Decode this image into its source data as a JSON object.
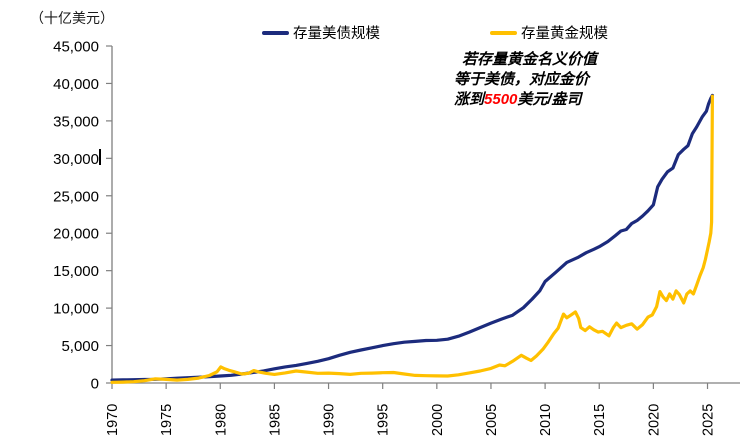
{
  "unit_label": "（十亿美元）",
  "legend": [
    {
      "label": "存量美债规模",
      "color": "#1c2b7d"
    },
    {
      "label": "存量黄金规模",
      "color": "#ffc000"
    }
  ],
  "annotation": {
    "line1": "若存量黄金名义价值",
    "line2": "等于美债，对应金价",
    "line3_prefix": "涨到",
    "line3_highlight": "5500",
    "line3_suffix": "美元/盎司",
    "highlight_color": "#ff0000"
  },
  "colors": {
    "axis": "#808080",
    "treasury": "#1c2b7d",
    "gold": "#ffc000"
  },
  "chart_data": {
    "type": "line",
    "title": "",
    "ylabel": "（十亿美元）",
    "xlabel": "",
    "grid": false,
    "legend_position": "top",
    "xlim": [
      1970,
      2028
    ],
    "ylim": [
      0,
      45000
    ],
    "x_ticks": [
      1970,
      1975,
      1980,
      1985,
      1990,
      1995,
      2000,
      2005,
      2010,
      2015,
      2020,
      2025
    ],
    "y_ticks": [
      0,
      5000,
      10000,
      15000,
      20000,
      25000,
      30000,
      35000,
      40000,
      45000
    ],
    "series": [
      {
        "name": "存量美债规模",
        "color": "#1c2b7d",
        "points": [
          [
            1970,
            390
          ],
          [
            1971,
            410
          ],
          [
            1972,
            440
          ],
          [
            1973,
            465
          ],
          [
            1974,
            490
          ],
          [
            1975,
            560
          ],
          [
            1976,
            640
          ],
          [
            1977,
            710
          ],
          [
            1978,
            780
          ],
          [
            1979,
            840
          ],
          [
            1980,
            930
          ],
          [
            1981,
            1030
          ],
          [
            1982,
            1200
          ],
          [
            1983,
            1400
          ],
          [
            1984,
            1620
          ],
          [
            1985,
            1900
          ],
          [
            1986,
            2150
          ],
          [
            1987,
            2350
          ],
          [
            1988,
            2620
          ],
          [
            1989,
            2900
          ],
          [
            1990,
            3250
          ],
          [
            1991,
            3700
          ],
          [
            1992,
            4100
          ],
          [
            1993,
            4400
          ],
          [
            1994,
            4700
          ],
          [
            1995,
            5000
          ],
          [
            1996,
            5250
          ],
          [
            1997,
            5450
          ],
          [
            1998,
            5550
          ],
          [
            1999,
            5680
          ],
          [
            2000,
            5700
          ],
          [
            2001,
            5850
          ],
          [
            2002,
            6250
          ],
          [
            2003,
            6800
          ],
          [
            2004,
            7400
          ],
          [
            2005,
            8000
          ],
          [
            2006,
            8550
          ],
          [
            2007,
            9050
          ],
          [
            2008,
            10050
          ],
          [
            2008.8,
            11200
          ],
          [
            2009.5,
            12300
          ],
          [
            2010,
            13550
          ],
          [
            2011,
            14800
          ],
          [
            2012,
            16100
          ],
          [
            2013,
            16750
          ],
          [
            2013.8,
            17400
          ],
          [
            2014.5,
            17850
          ],
          [
            2015,
            18200
          ],
          [
            2015.8,
            18900
          ],
          [
            2016.5,
            19700
          ],
          [
            2017,
            20300
          ],
          [
            2017.5,
            20500
          ],
          [
            2018,
            21300
          ],
          [
            2018.5,
            21700
          ],
          [
            2019,
            22300
          ],
          [
            2019.5,
            23000
          ],
          [
            2020,
            23800
          ],
          [
            2020.4,
            26200
          ],
          [
            2020.8,
            27200
          ],
          [
            2021.3,
            28200
          ],
          [
            2021.8,
            28700
          ],
          [
            2022.3,
            30500
          ],
          [
            2022.8,
            31200
          ],
          [
            2023.2,
            31700
          ],
          [
            2023.6,
            33300
          ],
          [
            2024,
            34200
          ],
          [
            2024.5,
            35500
          ],
          [
            2024.9,
            36300
          ],
          [
            2025.1,
            37300
          ],
          [
            2025.3,
            38000
          ],
          [
            2025.45,
            38400
          ]
        ]
      },
      {
        "name": "存量黄金规模",
        "color": "#ffc000",
        "points": [
          [
            1970,
            100
          ],
          [
            1971,
            120
          ],
          [
            1972,
            180
          ],
          [
            1973,
            310
          ],
          [
            1974,
            560
          ],
          [
            1975,
            480
          ],
          [
            1976,
            390
          ],
          [
            1977,
            480
          ],
          [
            1978,
            650
          ],
          [
            1979,
            1000
          ],
          [
            1979.7,
            1500
          ],
          [
            1980.05,
            2150
          ],
          [
            1980.4,
            1900
          ],
          [
            1980.8,
            1700
          ],
          [
            1981.3,
            1500
          ],
          [
            1982,
            1200
          ],
          [
            1982.6,
            1300
          ],
          [
            1983.1,
            1650
          ],
          [
            1983.6,
            1450
          ],
          [
            1984.2,
            1300
          ],
          [
            1985,
            1150
          ],
          [
            1986,
            1350
          ],
          [
            1987,
            1600
          ],
          [
            1988,
            1450
          ],
          [
            1989,
            1300
          ],
          [
            1990,
            1320
          ],
          [
            1991,
            1250
          ],
          [
            1992,
            1150
          ],
          [
            1993,
            1300
          ],
          [
            1994,
            1320
          ],
          [
            1995,
            1380
          ],
          [
            1996,
            1400
          ],
          [
            1997,
            1200
          ],
          [
            1998,
            1020
          ],
          [
            1999,
            980
          ],
          [
            2000,
            950
          ],
          [
            2001,
            930
          ],
          [
            2002,
            1100
          ],
          [
            2003,
            1350
          ],
          [
            2004,
            1600
          ],
          [
            2005,
            1950
          ],
          [
            2005.8,
            2400
          ],
          [
            2006.3,
            2300
          ],
          [
            2007,
            2900
          ],
          [
            2007.8,
            3700
          ],
          [
            2008.3,
            3300
          ],
          [
            2008.7,
            3000
          ],
          [
            2009.2,
            3600
          ],
          [
            2009.8,
            4500
          ],
          [
            2010.3,
            5500
          ],
          [
            2010.8,
            6600
          ],
          [
            2011.2,
            7300
          ],
          [
            2011.7,
            9200
          ],
          [
            2012,
            8700
          ],
          [
            2012.4,
            9100
          ],
          [
            2012.8,
            9500
          ],
          [
            2013.1,
            8600
          ],
          [
            2013.3,
            7400
          ],
          [
            2013.7,
            7000
          ],
          [
            2014.1,
            7500
          ],
          [
            2014.5,
            7100
          ],
          [
            2014.9,
            6800
          ],
          [
            2015.3,
            6900
          ],
          [
            2015.9,
            6300
          ],
          [
            2016.3,
            7400
          ],
          [
            2016.6,
            8000
          ],
          [
            2017,
            7400
          ],
          [
            2017.5,
            7700
          ],
          [
            2018,
            7900
          ],
          [
            2018.5,
            7200
          ],
          [
            2019,
            7800
          ],
          [
            2019.5,
            8800
          ],
          [
            2019.9,
            9100
          ],
          [
            2020.3,
            10200
          ],
          [
            2020.6,
            12200
          ],
          [
            2020.9,
            11500
          ],
          [
            2021.2,
            11000
          ],
          [
            2021.5,
            11900
          ],
          [
            2021.8,
            11200
          ],
          [
            2022.1,
            12300
          ],
          [
            2022.4,
            11800
          ],
          [
            2022.8,
            10700
          ],
          [
            2023.1,
            11900
          ],
          [
            2023.4,
            12300
          ],
          [
            2023.7,
            11900
          ],
          [
            2024,
            13100
          ],
          [
            2024.3,
            14300
          ],
          [
            2024.6,
            15400
          ],
          [
            2024.8,
            16500
          ],
          [
            2025,
            17800
          ],
          [
            2025.15,
            18800
          ],
          [
            2025.3,
            20000
          ],
          [
            2025.38,
            21500
          ],
          [
            2025.45,
            38300
          ]
        ]
      }
    ]
  }
}
